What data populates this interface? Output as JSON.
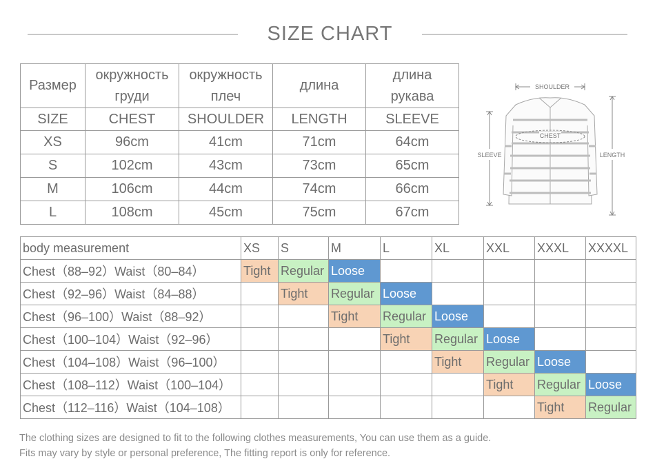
{
  "title": "SIZE CHART",
  "size_table": {
    "ru_headers": [
      [
        "Размер"
      ],
      [
        "окружность",
        "груди"
      ],
      [
        "окружность",
        "плеч"
      ],
      [
        "длина"
      ],
      [
        "длина",
        "рукава"
      ]
    ],
    "en_headers": [
      "SIZE",
      "CHEST",
      "SHOULDER",
      "LENGTH",
      "SLEEVE"
    ],
    "rows": [
      [
        "XS",
        "96cm",
        "41cm",
        "71cm",
        "64cm"
      ],
      [
        "S",
        "102cm",
        "43cm",
        "73cm",
        "65cm"
      ],
      [
        "M",
        "106cm",
        "44cm",
        "74cm",
        "66cm"
      ],
      [
        "L",
        "108cm",
        "45cm",
        "75cm",
        "67cm"
      ]
    ]
  },
  "diagram": {
    "shoulder": "SHOULDER",
    "chest": "CHEST",
    "sleeve": "SLEEVE",
    "length": "LENGTH"
  },
  "fit_table": {
    "header": [
      "body measurement",
      "XS",
      "S",
      "M",
      "L",
      "XL",
      "XXL",
      "XXXL",
      "XXXXL"
    ],
    "rows": [
      {
        "label": "Chest（88–92）Waist（80–84）",
        "cells": [
          "Tight",
          "Regular",
          "Loose",
          "",
          "",
          "",
          "",
          ""
        ]
      },
      {
        "label": "Chest（92–96）Waist（84–88）",
        "cells": [
          "",
          "Tight",
          "Regular",
          "Loose",
          "",
          "",
          "",
          ""
        ]
      },
      {
        "label": "Chest（96–100）Waist（88–92）",
        "cells": [
          "",
          "",
          "Tight",
          "Regular",
          "Loose",
          "",
          "",
          ""
        ]
      },
      {
        "label": "Chest（100–104）Waist（92–96）",
        "cells": [
          "",
          "",
          "",
          "Tight",
          "Regular",
          "Loose",
          "",
          ""
        ]
      },
      {
        "label": "Chest（104–108）Waist（96–100）",
        "cells": [
          "",
          "",
          "",
          "",
          "Tight",
          "Regular",
          "Loose",
          ""
        ]
      },
      {
        "label": "Chest（108–112）Waist（100–104）",
        "cells": [
          "",
          "",
          "",
          "",
          "",
          "Tight",
          "Regular",
          "Loose"
        ]
      },
      {
        "label": "Chest（112–116）Waist（104–108）",
        "cells": [
          "",
          "",
          "",
          "",
          "",
          "",
          "Tight",
          "Regular"
        ]
      }
    ]
  },
  "colors": {
    "tight": "#f8d3b5",
    "regular": "#c8f1c3",
    "loose": "#5f98d1"
  },
  "notes": [
    "The clothing sizes are designed to fit to the following clothes measurements, You can use them as a guide.",
    "Fits may vary by style or personal preference, The fitting report is only for reference."
  ]
}
